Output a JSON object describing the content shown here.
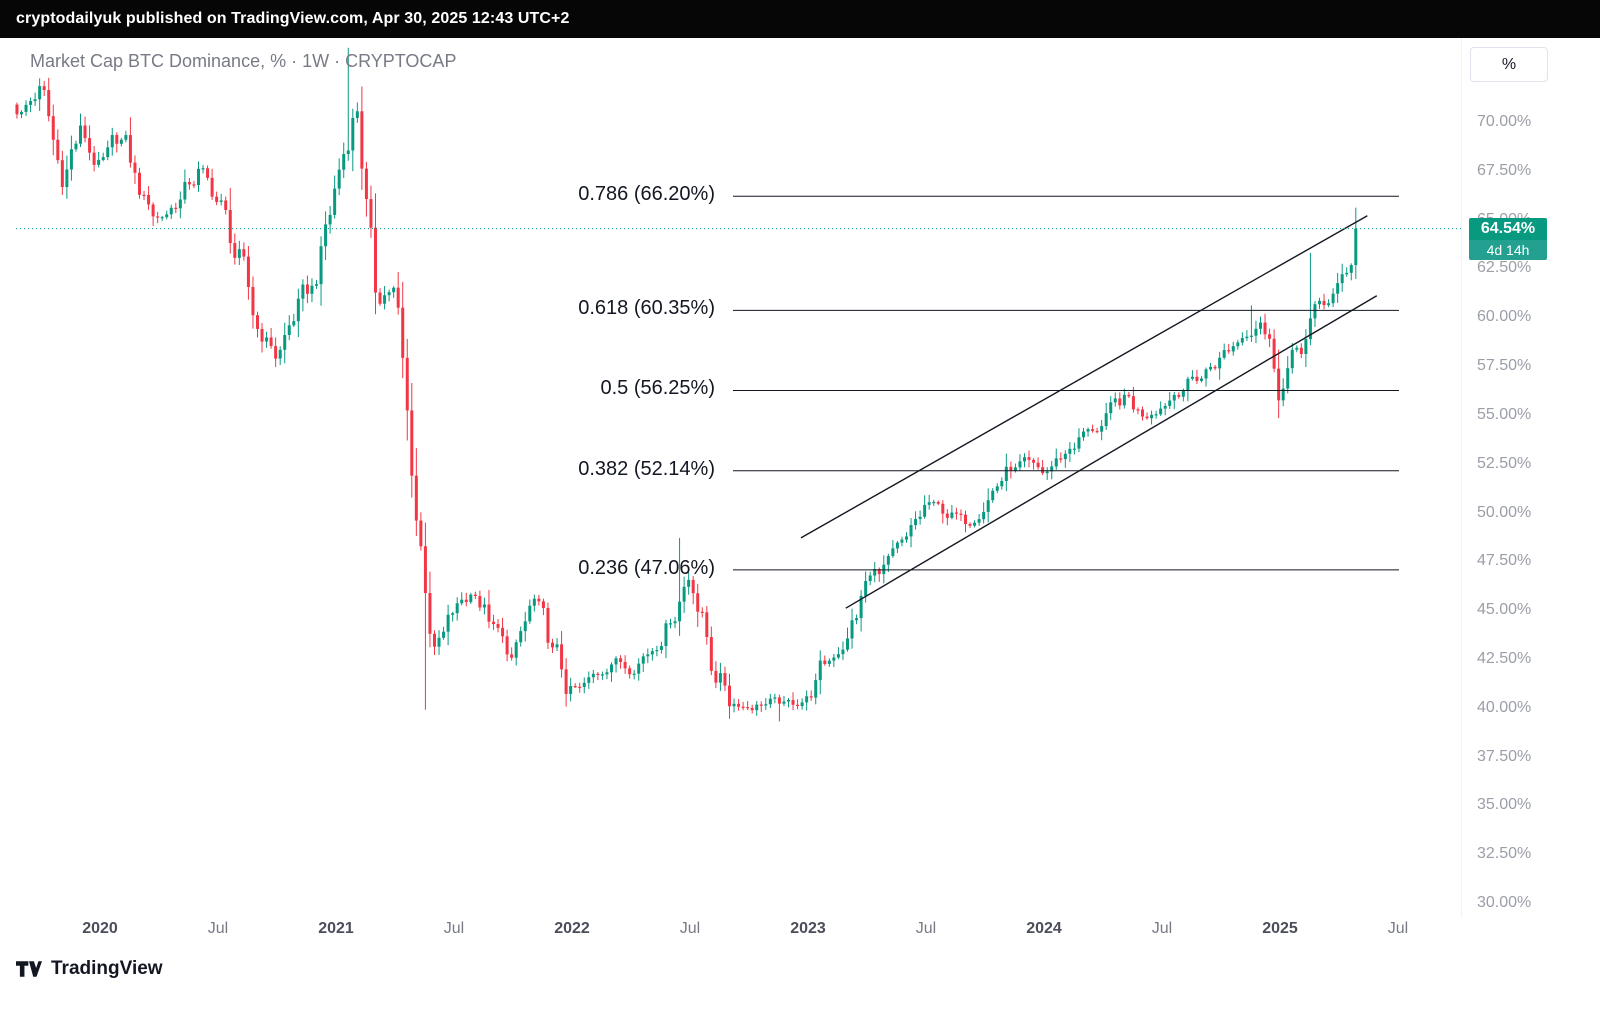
{
  "top_bar": {
    "text": "cryptodailyuk published on TradingView.com, Apr 30, 2025 12:43 UTC+2"
  },
  "ui": {
    "title": "Market Cap BTC Dominance, % · 1W · CRYPTOCAP",
    "percent_button": "%",
    "price_label": {
      "value": "64.54%",
      "countdown": "4d 14h"
    },
    "colors": {
      "up": "#089981",
      "down": "#F23645",
      "fib_line": "#131722",
      "trend_line": "#131722",
      "price_line": "#089981",
      "axis_text": "#9B9EA8",
      "label_text": "#131722"
    },
    "y_axis_labels": [
      {
        "label": "70.00%",
        "value": 70.0
      },
      {
        "label": "67.50%",
        "value": 67.5
      },
      {
        "label": "65.00%",
        "value": 65.0
      },
      {
        "label": "62.50%",
        "value": 62.5
      },
      {
        "label": "60.00%",
        "value": 60.0
      },
      {
        "label": "57.50%",
        "value": 57.5
      },
      {
        "label": "55.00%",
        "value": 55.0
      },
      {
        "label": "52.50%",
        "value": 52.5
      },
      {
        "label": "50.00%",
        "value": 50.0
      },
      {
        "label": "47.50%",
        "value": 47.5
      },
      {
        "label": "45.00%",
        "value": 45.0
      },
      {
        "label": "42.50%",
        "value": 42.5
      },
      {
        "label": "40.00%",
        "value": 40.0
      },
      {
        "label": "37.50%",
        "value": 37.5
      },
      {
        "label": "35.00%",
        "value": 35.0
      },
      {
        "label": "32.50%",
        "value": 32.5
      },
      {
        "label": "30.00%",
        "value": 30.0
      }
    ],
    "x_axis_labels": [
      {
        "label": "2020",
        "t": 2020.0,
        "major": true
      },
      {
        "label": "Jul",
        "t": 2020.5,
        "major": false
      },
      {
        "label": "2021",
        "t": 2021.0,
        "major": true
      },
      {
        "label": "Jul",
        "t": 2021.5,
        "major": false
      },
      {
        "label": "2022",
        "t": 2022.0,
        "major": true
      },
      {
        "label": "Jul",
        "t": 2022.5,
        "major": false
      },
      {
        "label": "2023",
        "t": 2023.0,
        "major": true
      },
      {
        "label": "Jul",
        "t": 2023.5,
        "major": false
      },
      {
        "label": "2024",
        "t": 2024.0,
        "major": true
      },
      {
        "label": "Jul",
        "t": 2024.5,
        "major": false
      },
      {
        "label": "2025",
        "t": 2025.0,
        "major": true
      },
      {
        "label": "Jul",
        "t": 2025.5,
        "major": false
      }
    ]
  },
  "chart_data": {
    "type": "candlestick",
    "title": "Market Cap BTC Dominance",
    "symbol": "CRYPTOCAP",
    "interval": "1W",
    "unit": "%",
    "ylim": [
      30.0,
      74.0
    ],
    "x_domain": [
      "2019-08",
      "2025-06"
    ],
    "last_close": 64.54,
    "countdown": "4d 14h",
    "monthly_close_anchors": [
      [
        "2019-08",
        70.5
      ],
      [
        "2019-09",
        71.8
      ],
      [
        "2019-10",
        67.2
      ],
      [
        "2019-11",
        69.5
      ],
      [
        "2019-12",
        67.5
      ],
      [
        "2020-01",
        69.5
      ],
      [
        "2020-02",
        66.5
      ],
      [
        "2020-03",
        65.0
      ],
      [
        "2020-04",
        66.0
      ],
      [
        "2020-05",
        67.5
      ],
      [
        "2020-06",
        66.0
      ],
      [
        "2020-07",
        63.0
      ],
      [
        "2020-08",
        59.5
      ],
      [
        "2020-09",
        58.0
      ],
      [
        "2020-10",
        60.5
      ],
      [
        "2020-11",
        62.0
      ],
      [
        "2020-12",
        67.0
      ],
      [
        "2021-01",
        71.0
      ],
      [
        "2021-02",
        61.0
      ],
      [
        "2021-03",
        61.5
      ],
      [
        "2021-04",
        50.5
      ],
      [
        "2021-05",
        42.5
      ],
      [
        "2021-06",
        45.0
      ],
      [
        "2021-07",
        46.0
      ],
      [
        "2021-08",
        44.0
      ],
      [
        "2021-09",
        42.5
      ],
      [
        "2021-10",
        45.5
      ],
      [
        "2021-11",
        43.0
      ],
      [
        "2021-12",
        40.5
      ],
      [
        "2022-01",
        41.5
      ],
      [
        "2022-02",
        42.5
      ],
      [
        "2022-03",
        42.0
      ],
      [
        "2022-04",
        43.0
      ],
      [
        "2022-05",
        44.5
      ],
      [
        "2022-06",
        47.0
      ],
      [
        "2022-07",
        42.5
      ],
      [
        "2022-08",
        40.5
      ],
      [
        "2022-09",
        40.0
      ],
      [
        "2022-10",
        40.3
      ],
      [
        "2022-11",
        40.2
      ],
      [
        "2022-12",
        40.5
      ],
      [
        "2023-01",
        42.5
      ],
      [
        "2023-02",
        43.5
      ],
      [
        "2023-03",
        46.5
      ],
      [
        "2023-04",
        47.5
      ],
      [
        "2023-05",
        48.5
      ],
      [
        "2023-06",
        50.5
      ],
      [
        "2023-07",
        50.0
      ],
      [
        "2023-08",
        49.5
      ],
      [
        "2023-09",
        50.5
      ],
      [
        "2023-10",
        52.0
      ],
      [
        "2023-11",
        52.5
      ],
      [
        "2023-12",
        52.0
      ],
      [
        "2024-01",
        53.0
      ],
      [
        "2024-02",
        54.0
      ],
      [
        "2024-03",
        54.5
      ],
      [
        "2024-04",
        56.0
      ],
      [
        "2024-05",
        55.0
      ],
      [
        "2024-06",
        55.5
      ],
      [
        "2024-07",
        56.5
      ],
      [
        "2024-08",
        57.0
      ],
      [
        "2024-09",
        58.0
      ],
      [
        "2024-10",
        59.0
      ],
      [
        "2024-11",
        60.0
      ],
      [
        "2024-12",
        56.5
      ],
      [
        "2025-01",
        58.5
      ],
      [
        "2025-02",
        60.5
      ],
      [
        "2025-03",
        61.5
      ],
      [
        "2025-04",
        64.54
      ]
    ],
    "wick_events": [
      {
        "month": "2021-01",
        "high": 73.8
      },
      {
        "month": "2021-05",
        "low": 39.9
      },
      {
        "month": "2022-06",
        "high": 48.7
      },
      {
        "month": "2022-11",
        "low": 39.3
      },
      {
        "month": "2024-11",
        "high": 60.6
      },
      {
        "month": "2025-02",
        "high": 63.3
      }
    ],
    "fib_retracement": {
      "levels": [
        {
          "level": 0.786,
          "value": 66.2,
          "label": "0.786 (66.20%)"
        },
        {
          "level": 0.618,
          "value": 60.35,
          "label": "0.618 (60.35%)"
        },
        {
          "level": 0.5,
          "value": 56.25,
          "label": "0.5 (56.25%)"
        },
        {
          "level": 0.382,
          "value": 52.14,
          "label": "0.382 (52.14%)"
        },
        {
          "level": 0.236,
          "value": 47.06,
          "label": "0.236 (47.06%)"
        }
      ]
    },
    "trend_channel": [
      {
        "t1": 2022.97,
        "v1": 48.7,
        "t2": 2025.37,
        "v2": 65.2
      },
      {
        "t1": 2023.16,
        "v1": 45.1,
        "t2": 2025.41,
        "v2": 61.1
      }
    ],
    "price_line": {
      "value": 64.54,
      "style": "dotted"
    }
  },
  "attribution": {
    "name": "TradingView"
  }
}
